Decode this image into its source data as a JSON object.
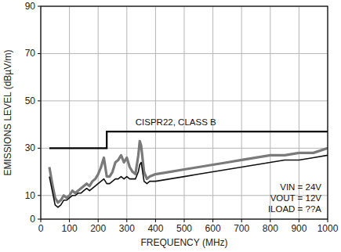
{
  "chart_data": {
    "type": "line",
    "x_label": "FREQUENCY (MHz)",
    "y_label": "EMISSIONS LEVEL (dBµV/m)",
    "annotations": [
      "VIN = 24V",
      "VOUT = 12V",
      "ILOAD = ??A"
    ],
    "xlim": [
      0,
      1000
    ],
    "xticks": [
      0,
      100,
      200,
      300,
      400,
      500,
      600,
      700,
      800,
      900,
      1000
    ],
    "ylim": [
      0,
      90
    ],
    "yticks": [
      0,
      10,
      30,
      50,
      70,
      90
    ],
    "grid": true,
    "x": [
      30,
      40,
      50,
      60,
      70,
      80,
      90,
      100,
      110,
      120,
      130,
      140,
      150,
      160,
      170,
      180,
      190,
      200,
      210,
      220,
      230,
      240,
      250,
      260,
      270,
      280,
      290,
      300,
      310,
      320,
      330,
      340,
      345,
      350,
      360,
      370,
      380,
      400,
      450,
      500,
      550,
      600,
      650,
      700,
      750,
      800,
      850,
      900,
      950,
      1000
    ],
    "series": [
      {
        "color": "#7a7a7a",
        "type": "line",
        "values": [
          22,
          15,
          9,
          7,
          8,
          10,
          9,
          10,
          12,
          11,
          12,
          13,
          14,
          15,
          14,
          16,
          17,
          19,
          22,
          26,
          18,
          18,
          20,
          24,
          25,
          27,
          24,
          26,
          22,
          20,
          19,
          27,
          33,
          31,
          20,
          17,
          18,
          19,
          20,
          21,
          22,
          23,
          24,
          25,
          26,
          27,
          27,
          28,
          28,
          30
        ]
      },
      {
        "color": "#111111",
        "type": "line",
        "values": [
          18,
          12,
          6,
          5,
          6,
          8,
          8,
          9,
          10,
          10,
          11,
          11,
          12,
          13,
          12,
          13,
          14,
          15,
          16,
          17,
          15,
          15,
          16,
          17,
          17,
          18,
          17,
          18,
          17,
          17,
          17,
          20,
          23,
          24,
          16,
          15,
          16,
          16,
          17,
          18,
          19,
          20,
          21,
          22,
          23,
          24,
          25,
          25,
          26,
          27
        ]
      },
      {
        "name": "CISPR22, CLASS B",
        "color": "#000000",
        "type": "line",
        "x": [
          30,
          230,
          230,
          1000
        ],
        "values": [
          30,
          30,
          37,
          37
        ]
      }
    ]
  }
}
